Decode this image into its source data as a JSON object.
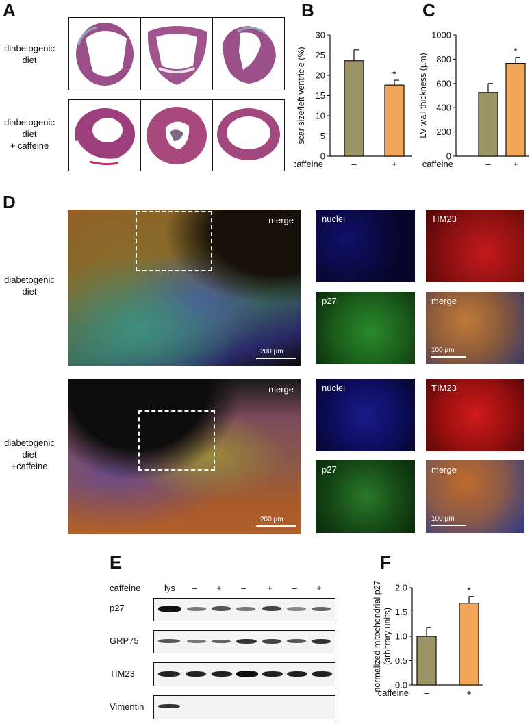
{
  "panels": {
    "a": "A",
    "b": "B",
    "c": "C",
    "d": "D",
    "e": "E",
    "f": "F"
  },
  "row_labels": {
    "diet_line1": "diabetogenic",
    "diet_line2": "diet",
    "caff_line1": "diabetogenic",
    "caff_line2": "diet",
    "caff_line3": "+ caffeine",
    "d_diet_line1": "diabetogenic",
    "d_diet_line2": "diet",
    "d_caff_line1": "diabetogenic",
    "d_caff_line2": "diet",
    "d_caff_line3": "+caffeine"
  },
  "micro_labels": {
    "merge": "merge",
    "nuclei": "nuclei",
    "tim23": "TIM23",
    "p27": "p27",
    "scale_200": "200 µm",
    "scale_100": "100 µm"
  },
  "blot": {
    "caffeine_label": "caffeine",
    "lanes": [
      "lys",
      "–",
      "+",
      "–",
      "+",
      "–",
      "+"
    ],
    "rows": [
      "p27",
      "GRP75",
      "TIM23",
      "Vimentin"
    ]
  },
  "colors": {
    "olive": "#9b9465",
    "orange": "#f2a65a"
  },
  "chart_data": [
    {
      "type": "bar",
      "panel": "B",
      "ylabel": "scar size/left ventricle (%)",
      "xlabel": "caffeine",
      "categories": [
        "–",
        "+"
      ],
      "values": [
        23.6,
        17.6
      ],
      "errors": [
        2.7,
        1.2
      ],
      "significance": [
        "",
        "*"
      ],
      "ylim": [
        0,
        30
      ],
      "yticks": [
        0,
        5,
        10,
        15,
        20,
        25,
        30
      ]
    },
    {
      "type": "bar",
      "panel": "C",
      "ylabel": "LV wall thickness (µm)",
      "xlabel": "caffeine",
      "categories": [
        "–",
        "+"
      ],
      "values": [
        525,
        765
      ],
      "errors": [
        75,
        50
      ],
      "significance": [
        "",
        "*"
      ],
      "ylim": [
        0,
        1000
      ],
      "yticks": [
        0,
        200,
        400,
        600,
        800,
        1000
      ]
    },
    {
      "type": "bar",
      "panel": "F",
      "ylabel": "normalized mitochondrial p27",
      "ylabel2": "(arbitrary units)",
      "xlabel": "caffeine",
      "categories": [
        "–",
        "+"
      ],
      "values": [
        1.0,
        1.68
      ],
      "errors": [
        0.18,
        0.14
      ],
      "significance": [
        "",
        "*"
      ],
      "ylim": [
        0,
        2.0
      ],
      "yticks": [
        "0.0",
        "0.5",
        "1.0",
        "1.5",
        "2.0"
      ]
    }
  ]
}
